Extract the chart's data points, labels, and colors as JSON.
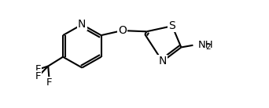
{
  "background_color": "#ffffff",
  "line_color": "#000000",
  "line_width": 1.5,
  "font_size": 9.5,
  "xlim": [
    0,
    10
  ],
  "ylim": [
    0,
    4.1
  ],
  "figsize": [
    3.42,
    1.38
  ],
  "dpi": 100
}
